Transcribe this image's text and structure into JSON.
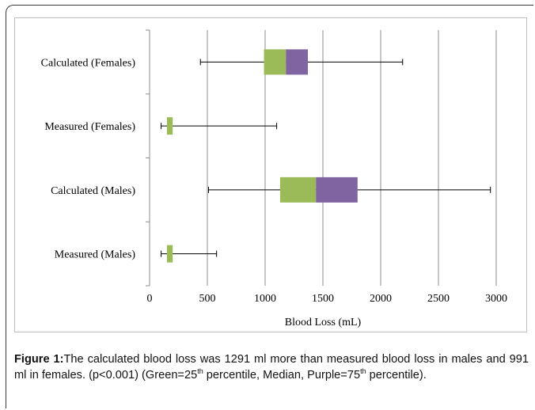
{
  "chart_data": {
    "type": "box",
    "orientation": "horizontal",
    "xlabel": "Blood Loss (mL)",
    "xlim": [
      0,
      3000
    ],
    "xticks": [
      0,
      500,
      1000,
      1500,
      2000,
      2500,
      3000
    ],
    "grid": "vertical",
    "categories": [
      "Calculated (Females)",
      "Measured (Females)",
      "Calculated (Males)",
      "Measured (Males)"
    ],
    "boxes": [
      {
        "label": "Calculated (Females)",
        "min": 440,
        "q1": 990,
        "median": 1180,
        "q3": 1370,
        "max": 2190
      },
      {
        "label": "Measured (Females)",
        "min": 100,
        "q1": 150,
        "median": 150,
        "q3": 200,
        "max": 1100
      },
      {
        "label": "Calculated (Males)",
        "min": 510,
        "q1": 1130,
        "median": 1440,
        "q3": 1800,
        "max": 2950
      },
      {
        "label": "Measured (Males)",
        "min": 100,
        "q1": 150,
        "median": 150,
        "q3": 200,
        "max": 580
      }
    ],
    "colors": {
      "lower_box": "#9bbb59",
      "upper_box": "#8064a2",
      "grid": "#8c8c8c",
      "whisker": "#000000"
    }
  },
  "caption": {
    "label": "Figure 1:",
    "text_a": "The calculated blood loss was 1291 ml more than measured blood loss in males and 991 ml in females. (p<0.001) (Green=25",
    "sup_1": "th",
    "text_b": " percentile, Median, Purple=75",
    "sup_2": "th",
    "text_c": " percentile)."
  }
}
